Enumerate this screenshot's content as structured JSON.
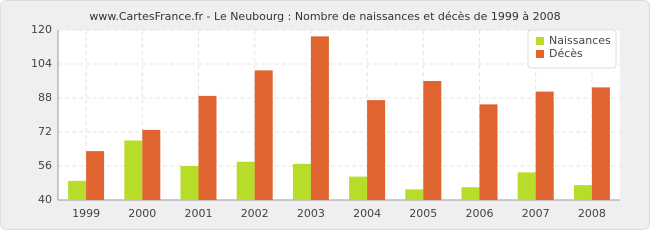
{
  "chart_data": {
    "type": "bar",
    "title": "www.CartesFrance.fr - Le Neubourg : Nombre de naissances et décès de 1999 à 2008",
    "categories": [
      "1999",
      "2000",
      "2001",
      "2002",
      "2003",
      "2004",
      "2005",
      "2006",
      "2007",
      "2008"
    ],
    "series": [
      {
        "name": "Naissances",
        "color": "#b8dc2a",
        "values": [
          49,
          68,
          56,
          58,
          57,
          51,
          45,
          46,
          53,
          47
        ]
      },
      {
        "name": "Décès",
        "color": "#e06430",
        "values": [
          63,
          73,
          89,
          101,
          117,
          87,
          96,
          85,
          91,
          93
        ]
      }
    ],
    "ylim": [
      40,
      120
    ],
    "yticks": [
      40,
      56,
      72,
      88,
      104,
      120
    ],
    "grid": true,
    "legend": "top-right"
  }
}
